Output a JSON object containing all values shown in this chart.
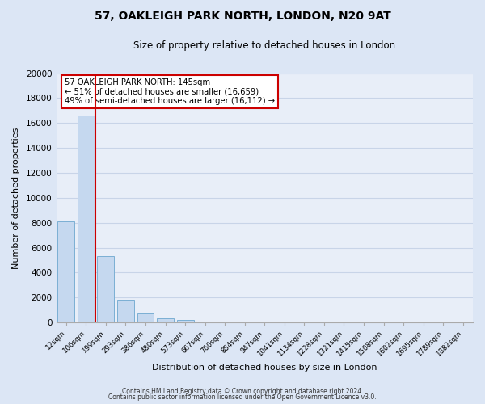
{
  "title1": "57, OAKLEIGH PARK NORTH, LONDON, N20 9AT",
  "title2": "Size of property relative to detached houses in London",
  "xlabel": "Distribution of detached houses by size in London",
  "ylabel": "Number of detached properties",
  "bar_labels": [
    "12sqm",
    "106sqm",
    "199sqm",
    "293sqm",
    "386sqm",
    "480sqm",
    "573sqm",
    "667sqm",
    "760sqm",
    "854sqm",
    "947sqm",
    "1041sqm",
    "1134sqm",
    "1228sqm",
    "1321sqm",
    "1415sqm",
    "1508sqm",
    "1602sqm",
    "1695sqm",
    "1789sqm",
    "1882sqm"
  ],
  "bar_values": [
    8100,
    16600,
    5300,
    1800,
    800,
    300,
    200,
    100,
    80,
    0,
    0,
    0,
    0,
    0,
    0,
    0,
    0,
    0,
    0,
    0,
    0
  ],
  "bar_color": "#c5d8ef",
  "bar_edge_color": "#7bafd4",
  "bar_width": 0.85,
  "ylim": [
    0,
    20000
  ],
  "yticks": [
    0,
    2000,
    4000,
    6000,
    8000,
    10000,
    12000,
    14000,
    16000,
    18000,
    20000
  ],
  "vline_x": 1.48,
  "vline_color": "#cc0000",
  "annotation_title": "57 OAKLEIGH PARK NORTH: 145sqm",
  "annotation_line1": "← 51% of detached houses are smaller (16,659)",
  "annotation_line2": "49% of semi-detached houses are larger (16,112) →",
  "annotation_box_color": "#ffffff",
  "annotation_border_color": "#cc0000",
  "grid_color": "#c8d4e8",
  "bg_color": "#dce6f5",
  "plot_bg_color": "#e8eef8",
  "footer1": "Contains HM Land Registry data © Crown copyright and database right 2024.",
  "footer2": "Contains public sector information licensed under the Open Government Licence v3.0."
}
